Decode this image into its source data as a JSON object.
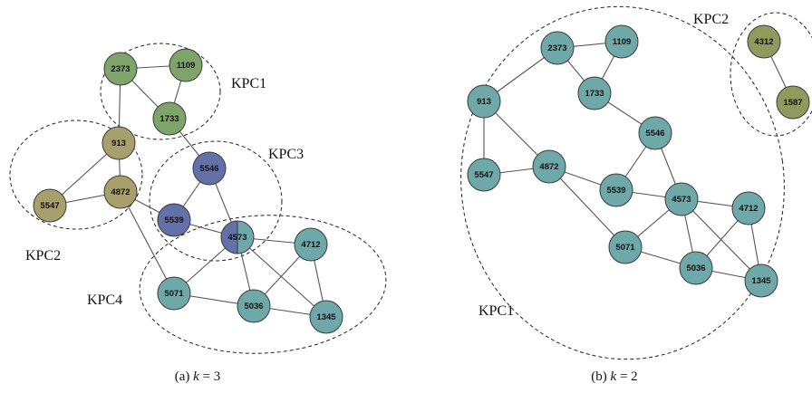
{
  "colors": {
    "green": "#7fa46a",
    "olive": "#a8a06c",
    "purple": "#6470a8",
    "teal": "#6fa8a8",
    "olive_dark": "#8f9a5c"
  },
  "left": {
    "caption_prefix": "(a) ",
    "caption_math": "k",
    "caption_suffix": " = 3",
    "groups": [
      {
        "id": "kpc1",
        "label": "KPC1"
      },
      {
        "id": "kpc2",
        "label": "KPC2"
      },
      {
        "id": "kpc3",
        "label": "KPC3"
      },
      {
        "id": "kpc4",
        "label": "KPC4"
      }
    ],
    "nodes": [
      {
        "id": "2373",
        "label": "2373",
        "color": "green"
      },
      {
        "id": "1109",
        "label": "1109",
        "color": "green"
      },
      {
        "id": "1733",
        "label": "1733",
        "color": "green"
      },
      {
        "id": "913",
        "label": "913",
        "color": "olive"
      },
      {
        "id": "4872",
        "label": "4872",
        "color": "olive"
      },
      {
        "id": "5547",
        "label": "5547",
        "color": "olive"
      },
      {
        "id": "5546",
        "label": "5546",
        "color": "purple"
      },
      {
        "id": "5539",
        "label": "5539",
        "color": "purple"
      },
      {
        "id": "4573",
        "label": "4573",
        "color": "split"
      },
      {
        "id": "4712",
        "label": "4712",
        "color": "teal"
      },
      {
        "id": "5071",
        "label": "5071",
        "color": "teal"
      },
      {
        "id": "5036",
        "label": "5036",
        "color": "teal"
      },
      {
        "id": "1345",
        "label": "1345",
        "color": "teal"
      }
    ],
    "edges": [
      [
        "2373",
        "1109"
      ],
      [
        "2373",
        "1733"
      ],
      [
        "1109",
        "1733"
      ],
      [
        "2373",
        "913"
      ],
      [
        "913",
        "5547"
      ],
      [
        "913",
        "4872"
      ],
      [
        "5547",
        "4872"
      ],
      [
        "4872",
        "5539"
      ],
      [
        "4872",
        "5071"
      ],
      [
        "1733",
        "5546"
      ],
      [
        "5546",
        "5539"
      ],
      [
        "5546",
        "4573"
      ],
      [
        "5539",
        "4573"
      ],
      [
        "4573",
        "4712"
      ],
      [
        "4573",
        "5071"
      ],
      [
        "4573",
        "5036"
      ],
      [
        "4573",
        "1345"
      ],
      [
        "4712",
        "5036"
      ],
      [
        "4712",
        "1345"
      ],
      [
        "5071",
        "5036"
      ],
      [
        "5036",
        "1345"
      ]
    ]
  },
  "right": {
    "caption_prefix": "(b) ",
    "caption_math": "k",
    "caption_suffix": " = 2",
    "groups": [
      {
        "id": "kpc1",
        "label": "KPC1"
      },
      {
        "id": "kpc2",
        "label": "KPC2"
      }
    ],
    "nodes": [
      {
        "id": "2373",
        "label": "2373",
        "color": "teal"
      },
      {
        "id": "1109",
        "label": "1109",
        "color": "teal"
      },
      {
        "id": "1733",
        "label": "1733",
        "color": "teal"
      },
      {
        "id": "913",
        "label": "913",
        "color": "teal"
      },
      {
        "id": "5547",
        "label": "5547",
        "color": "teal"
      },
      {
        "id": "4872",
        "label": "4872",
        "color": "teal"
      },
      {
        "id": "5546",
        "label": "5546",
        "color": "teal"
      },
      {
        "id": "5539",
        "label": "5539",
        "color": "teal"
      },
      {
        "id": "4573",
        "label": "4573",
        "color": "teal"
      },
      {
        "id": "4712",
        "label": "4712",
        "color": "teal"
      },
      {
        "id": "5071",
        "label": "5071",
        "color": "teal"
      },
      {
        "id": "5036",
        "label": "5036",
        "color": "teal"
      },
      {
        "id": "1345",
        "label": "1345",
        "color": "teal"
      },
      {
        "id": "4312",
        "label": "4312",
        "color": "olive_dark"
      },
      {
        "id": "1587",
        "label": "1587",
        "color": "olive_dark"
      }
    ],
    "edges": [
      [
        "2373",
        "1109"
      ],
      [
        "2373",
        "1733"
      ],
      [
        "1109",
        "1733"
      ],
      [
        "2373",
        "913"
      ],
      [
        "913",
        "5547"
      ],
      [
        "913",
        "4872"
      ],
      [
        "5547",
        "4872"
      ],
      [
        "4872",
        "5539"
      ],
      [
        "4872",
        "5071"
      ],
      [
        "1733",
        "5546"
      ],
      [
        "5546",
        "5539"
      ],
      [
        "5546",
        "4573"
      ],
      [
        "5539",
        "4573"
      ],
      [
        "4573",
        "4712"
      ],
      [
        "4573",
        "5071"
      ],
      [
        "4573",
        "5036"
      ],
      [
        "4573",
        "1345"
      ],
      [
        "4712",
        "5036"
      ],
      [
        "4712",
        "1345"
      ],
      [
        "5071",
        "5036"
      ],
      [
        "5036",
        "1345"
      ],
      [
        "4312",
        "1587"
      ]
    ]
  }
}
